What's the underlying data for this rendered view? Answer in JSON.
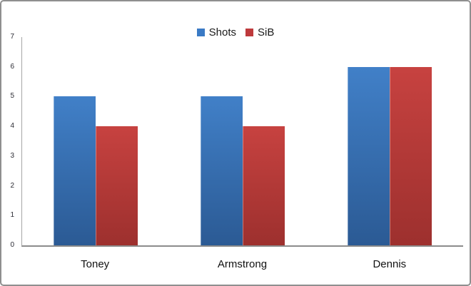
{
  "chart_data": {
    "type": "bar",
    "title": "",
    "xlabel": "",
    "ylabel": "",
    "categories": [
      "Toney",
      "Armstrong",
      "Dennis"
    ],
    "series": [
      {
        "name": "Shots",
        "values": [
          5,
          5,
          6
        ],
        "legend_color": "#3a7ac5",
        "color_top": "#4180c8",
        "color_bottom": "#2b5a94"
      },
      {
        "name": "SiB",
        "values": [
          4,
          4,
          6
        ],
        "legend_color": "#be3a3c",
        "color_top": "#c74240",
        "color_bottom": "#9d302e"
      }
    ],
    "ylim": [
      0,
      7
    ],
    "yticks": [
      0,
      1,
      2,
      3,
      4,
      5,
      6,
      7
    ],
    "grid": false,
    "legend_position": "top-center"
  }
}
